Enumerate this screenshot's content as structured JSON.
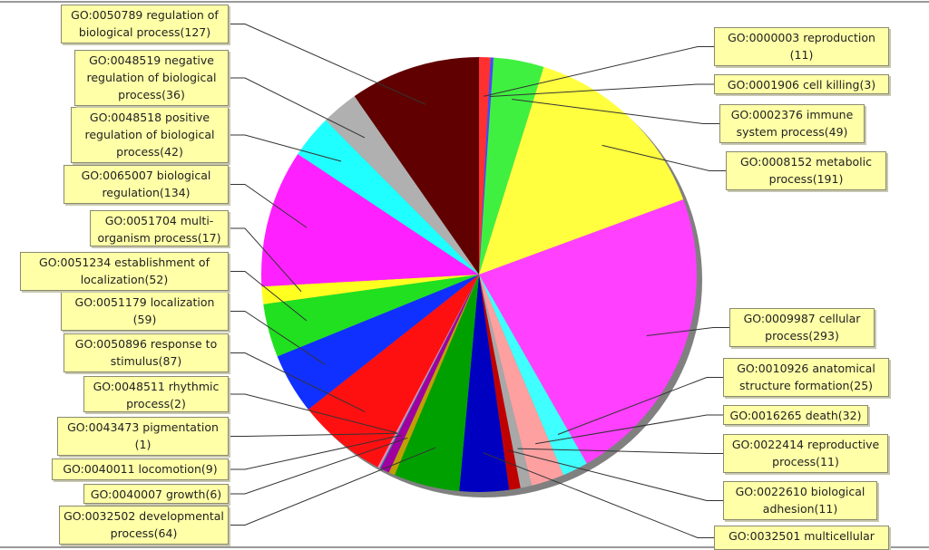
{
  "chart_data": {
    "type": "pie",
    "categories": [
      "GO:0000003 reproduction (11)",
      "GO:0001906 cell killing(3)",
      "GO:0002376 immune system process(49)",
      "GO:0008152 metabolic process(191)",
      "GO:0009987 cellular process(293)",
      "GO:0010926 anatomical structure formation(25)",
      "GO:0016265 death(32)",
      "GO:0022414 reproductive process(11)",
      "GO:0022610 biological adhesion(11)",
      "GO:0032501 multicellular",
      "GO:0032502 developmental process(64)",
      "GO:0040007 growth(6)",
      "GO:0040011 locomotion(9)",
      "GO:0043473 pigmentation (1)",
      "GO:0048511 rhythmic process(2)",
      "GO:0050896 response to stimulus(87)",
      "GO:0051179 localization (59)",
      "GO:0051234 establishment of localization(52)",
      "GO:0051704 multi-organism process(17)",
      "GO:0065007 biological regulation(134)",
      "GO:0048518 positive regulation of biological process(42)",
      "GO:0048519 negative regulation of biological process(36)",
      "GO:0050789 regulation of biological process(127)"
    ],
    "values": [
      11,
      3,
      49,
      191,
      293,
      25,
      32,
      11,
      11,
      48,
      64,
      6,
      9,
      1,
      2,
      87,
      59,
      52,
      17,
      134,
      42,
      36,
      127
    ],
    "colors": [
      "#ff3030",
      "#4848ff",
      "#40f040",
      "#ffff40",
      "#ff40ff",
      "#40ffff",
      "#ffa0a0",
      "#a8a8a8",
      "#c00000",
      "#0000c0",
      "#00a000",
      "#c0a000",
      "#a000a0",
      "#00a0a0",
      "#ff80c0",
      "#ff1010",
      "#1030ff",
      "#20e020",
      "#ffff20",
      "#ff20ff",
      "#20ffff",
      "#b0b0b0",
      "#600000"
    ]
  }
}
